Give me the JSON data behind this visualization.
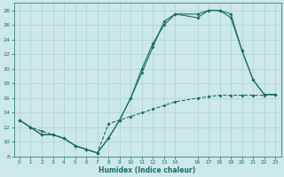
{
  "xlabel": "Humidex (Indice chaleur)",
  "bg_color": "#cce8e8",
  "grid_color": "#b0d0d0",
  "line_color": "#1a6b6b",
  "xlim": [
    -0.5,
    23.5
  ],
  "ylim": [
    8,
    29
  ],
  "xticks": [
    0,
    1,
    2,
    3,
    4,
    5,
    6,
    7,
    8,
    9,
    10,
    11,
    12,
    13,
    14,
    16,
    17,
    18,
    19,
    20,
    21,
    22,
    23
  ],
  "yticks": [
    8,
    10,
    12,
    14,
    16,
    18,
    20,
    22,
    24,
    26,
    28
  ],
  "line1_x": [
    0,
    1,
    2,
    3,
    4,
    5,
    6,
    7,
    8,
    9,
    10,
    11,
    12,
    13,
    14,
    16,
    17,
    18,
    19,
    20,
    21,
    22,
    23
  ],
  "line1_y": [
    13,
    12,
    11,
    11,
    10.5,
    9.5,
    9,
    8.5,
    10.5,
    13,
    16,
    19.5,
    23,
    26.5,
    27.5,
    27,
    28,
    28,
    27,
    22.5,
    18.5,
    16.5,
    16.5
  ],
  "line2_x": [
    0,
    1,
    2,
    3,
    4,
    5,
    6,
    7,
    8,
    9,
    10,
    11,
    12,
    13,
    14,
    16,
    17,
    18,
    19,
    20,
    21,
    22,
    23
  ],
  "line2_y": [
    13,
    12,
    11,
    11,
    10.5,
    9.5,
    9,
    8.5,
    10.5,
    13,
    16,
    20,
    23.5,
    26,
    27.5,
    27.5,
    28,
    28,
    27.5,
    22.5,
    18.5,
    16.5,
    16.5
  ],
  "line3_x": [
    0,
    1,
    2,
    3,
    4,
    5,
    6,
    7,
    8,
    9,
    10,
    11,
    12,
    13,
    14,
    16,
    17,
    18,
    19,
    20,
    21,
    22,
    23
  ],
  "line3_y": [
    13,
    12,
    11.5,
    11,
    10.5,
    9.5,
    9,
    8.5,
    12.5,
    13,
    13.5,
    14,
    14.5,
    15,
    15.5,
    16,
    16.2,
    16.4,
    16.4,
    16.4,
    16.4,
    16.4,
    16.5
  ]
}
